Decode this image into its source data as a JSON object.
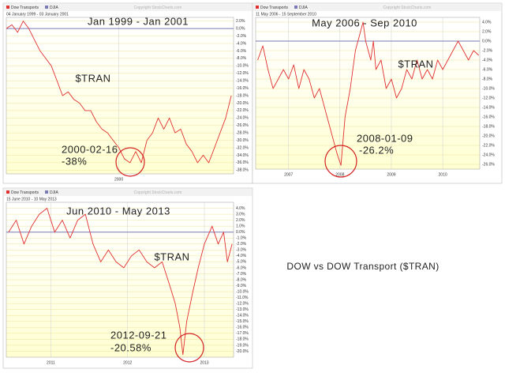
{
  "caption": "DOW vs DOW Transport ($TRAN)",
  "chart_data": [
    {
      "type": "line",
      "title": "Jan 1999 - Jan 2001",
      "subtitle": "04 January 1999 - 03 January 2001",
      "source": "Copyright StockCharts.com",
      "legend": [
        "Dow Transports",
        "DJIA"
      ],
      "label": "$TRAN",
      "annotation_date": "2000-02-16",
      "annotation_change": "-38%",
      "reference_line": 0,
      "reference_color": "#7a7ab8",
      "x": [
        1999.0,
        1999.05,
        1999.1,
        1999.15,
        1999.2,
        1999.25,
        1999.3,
        1999.35,
        1999.4,
        1999.45,
        1999.5,
        1999.55,
        1999.6,
        1999.65,
        1999.7,
        1999.75,
        1999.8,
        1999.85,
        1999.9,
        1999.95,
        2000.0,
        2000.05,
        2000.1,
        2000.15,
        2000.2,
        2000.25,
        2000.3,
        2000.35,
        2000.4,
        2000.45,
        2000.5,
        2000.55,
        2000.6,
        2000.65,
        2000.7,
        2000.75,
        2000.8,
        2000.85,
        2000.9,
        2000.95,
        2001.0
      ],
      "series": [
        {
          "name": "Dow Transports",
          "color": "#e03030",
          "values": [
            0,
            1,
            -1,
            2,
            0,
            -3,
            -6,
            -8,
            -10,
            -14,
            -18,
            -17,
            -19,
            -20,
            -22,
            -22,
            -25,
            -27,
            -28,
            -30,
            -32,
            -35,
            -36,
            -33,
            -36,
            -30,
            -28,
            -24,
            -27,
            -24,
            -28,
            -27,
            -31,
            -33,
            -36,
            -34,
            -36,
            -32,
            -28,
            -24,
            -18
          ]
        }
      ],
      "xlim": [
        1999.0,
        2001.02
      ],
      "xticks": [
        2000
      ],
      "ylim": [
        -39,
        3
      ],
      "yticks": [
        {
          "value": 2,
          "label": "2.0%"
        },
        {
          "value": 0,
          "label": "0.0%"
        },
        {
          "value": -2,
          "label": "-2.0%"
        },
        {
          "value": -4,
          "label": "-4.0%"
        },
        {
          "value": -6,
          "label": "-6.0%"
        },
        {
          "value": -8,
          "label": "-8.0%"
        },
        {
          "value": -10,
          "label": "-10.0%"
        },
        {
          "value": -12,
          "label": "-12.0%"
        },
        {
          "value": -14,
          "label": "-14.0%"
        },
        {
          "value": -16,
          "label": "-16.0%"
        },
        {
          "value": -18,
          "label": "-18.0%"
        },
        {
          "value": -20,
          "label": "-20.0%"
        },
        {
          "value": -22,
          "label": "-22.0%"
        },
        {
          "value": -24,
          "label": "-24.0%"
        },
        {
          "value": -26,
          "label": "-26.0%"
        },
        {
          "value": -28,
          "label": "-28.0%"
        },
        {
          "value": -30,
          "label": "-30.0%"
        },
        {
          "value": -32,
          "label": "-32.0%"
        },
        {
          "value": -34,
          "label": "-34.0%"
        },
        {
          "value": -36,
          "label": "-36.0%"
        },
        {
          "value": -38,
          "label": "-38.0%"
        }
      ],
      "grid": true
    },
    {
      "type": "line",
      "title": "May 2006 - Sep 2010",
      "subtitle": "11 May 2006 - 15 September 2010",
      "source": "Copyright StockCharts.com",
      "legend": [
        "Dow Transports",
        "DJIA"
      ],
      "label": "$TRAN",
      "annotation_date": "2008-01-09",
      "annotation_change": "-26.2%",
      "reference_line": 0,
      "reference_color": "#7a7ab8",
      "x": [
        2006.4,
        2006.5,
        2006.6,
        2006.7,
        2006.8,
        2006.9,
        2007.0,
        2007.1,
        2007.2,
        2007.3,
        2007.4,
        2007.5,
        2007.6,
        2007.7,
        2007.8,
        2007.9,
        2007.95,
        2008.02,
        2008.1,
        2008.2,
        2008.3,
        2008.4,
        2008.45,
        2008.5,
        2008.6,
        2008.65,
        2008.7,
        2008.8,
        2008.9,
        2009.0,
        2009.1,
        2009.2,
        2009.3,
        2009.4,
        2009.5,
        2009.6,
        2009.7,
        2009.8,
        2009.9,
        2010.0,
        2010.1,
        2010.2,
        2010.3,
        2010.4,
        2010.5,
        2010.6,
        2010.7
      ],
      "series": [
        {
          "name": "Dow Transports",
          "color": "#e03030",
          "values": [
            -4,
            -1,
            -6,
            -10,
            -8,
            -6,
            -8,
            -5,
            -10,
            -6,
            -8,
            -12,
            -10,
            -14,
            -18,
            -22,
            -24,
            -26.2,
            -16,
            -10,
            -2,
            2,
            4,
            0,
            -4,
            0,
            -6,
            -4,
            -10,
            -8,
            -12,
            -10,
            -6,
            -8,
            -4,
            -8,
            -6,
            -8,
            -4,
            -6,
            -4,
            -2,
            0,
            -2,
            -4,
            -2,
            -3
          ]
        }
      ],
      "xlim": [
        2006.36,
        2010.72
      ],
      "xticks": [
        2007,
        2008,
        2009,
        2010
      ],
      "ylim": [
        -27,
        5
      ],
      "yticks": [
        {
          "value": 4,
          "label": "4.0%"
        },
        {
          "value": 2,
          "label": "2.0%"
        },
        {
          "value": 0,
          "label": "0.0%"
        },
        {
          "value": -2,
          "label": "-2.0%"
        },
        {
          "value": -4,
          "label": "-4.0%"
        },
        {
          "value": -6,
          "label": "-6.0%"
        },
        {
          "value": -8,
          "label": "-8.0%"
        },
        {
          "value": -10,
          "label": "-10.0%"
        },
        {
          "value": -12,
          "label": "-12.0%"
        },
        {
          "value": -14,
          "label": "-14.0%"
        },
        {
          "value": -16,
          "label": "-16.0%"
        },
        {
          "value": -18,
          "label": "-18.0%"
        },
        {
          "value": -20,
          "label": "-20.0%"
        },
        {
          "value": -22,
          "label": "-22.0%"
        },
        {
          "value": -24,
          "label": "-24.0%"
        },
        {
          "value": -26,
          "label": "-26.0%"
        }
      ],
      "grid": true
    },
    {
      "type": "line",
      "title": "Jun 2010 - May 2013",
      "subtitle": "15 June 2010 - 10 May 2013",
      "source": "Copyright StockCharts.com",
      "legend": [
        "Dow Transports",
        "DJIA"
      ],
      "label": "$TRAN",
      "annotation_date": "2012-09-21",
      "annotation_change": "-20.58%",
      "reference_line": 0,
      "reference_color": "#7a7ab8",
      "x": [
        2010.45,
        2010.55,
        2010.65,
        2010.75,
        2010.85,
        2010.95,
        2011.05,
        2011.15,
        2011.25,
        2011.35,
        2011.45,
        2011.55,
        2011.65,
        2011.75,
        2011.85,
        2011.95,
        2012.05,
        2012.15,
        2012.25,
        2012.35,
        2012.45,
        2012.55,
        2012.62,
        2012.68,
        2012.72,
        2012.77,
        2012.85,
        2012.92,
        2013.0,
        2013.1,
        2013.18,
        2013.25,
        2013.3,
        2013.36
      ],
      "series": [
        {
          "name": "Dow Transports",
          "color": "#e03030",
          "values": [
            0,
            2,
            -2,
            1,
            3,
            4,
            0,
            2,
            -1,
            2,
            3,
            -2,
            -5,
            -3,
            -5,
            -6,
            -4,
            -3,
            -5,
            -6,
            -5,
            -9,
            -12,
            -16,
            -20.58,
            -15,
            -10,
            -6,
            -2,
            1,
            -2,
            0,
            -5,
            -2
          ]
        }
      ],
      "xlim": [
        2010.42,
        2013.38
      ],
      "xticks": [
        2011,
        2012,
        2013
      ],
      "ylim": [
        -21,
        5
      ],
      "yticks": [
        {
          "value": 4,
          "label": "4.0%"
        },
        {
          "value": 3,
          "label": "3.0%"
        },
        {
          "value": 2,
          "label": "2.0%"
        },
        {
          "value": 1,
          "label": "1.0%"
        },
        {
          "value": 0,
          "label": "0.0%"
        },
        {
          "value": -1,
          "label": "-1.0%"
        },
        {
          "value": -2,
          "label": "-2.0%"
        },
        {
          "value": -3,
          "label": "-3.0%"
        },
        {
          "value": -4,
          "label": "-4.0%"
        },
        {
          "value": -5,
          "label": "-5.0%"
        },
        {
          "value": -6,
          "label": "-6.0%"
        },
        {
          "value": -7,
          "label": "-7.0%"
        },
        {
          "value": -8,
          "label": "-8.0%"
        },
        {
          "value": -9,
          "label": "-9.0%"
        },
        {
          "value": -10,
          "label": "-10.0%"
        },
        {
          "value": -11,
          "label": "-11.0%"
        },
        {
          "value": -12,
          "label": "-12.0%"
        },
        {
          "value": -13,
          "label": "-13.0%"
        },
        {
          "value": -14,
          "label": "-14.0%"
        },
        {
          "value": -15,
          "label": "-15.0%"
        },
        {
          "value": -16,
          "label": "-16.0%"
        },
        {
          "value": -17,
          "label": "-17.0%"
        },
        {
          "value": -18,
          "label": "-18.0%"
        },
        {
          "value": -19,
          "label": "-19.0%"
        },
        {
          "value": -20,
          "label": "-20.0%"
        }
      ],
      "grid": true
    }
  ]
}
